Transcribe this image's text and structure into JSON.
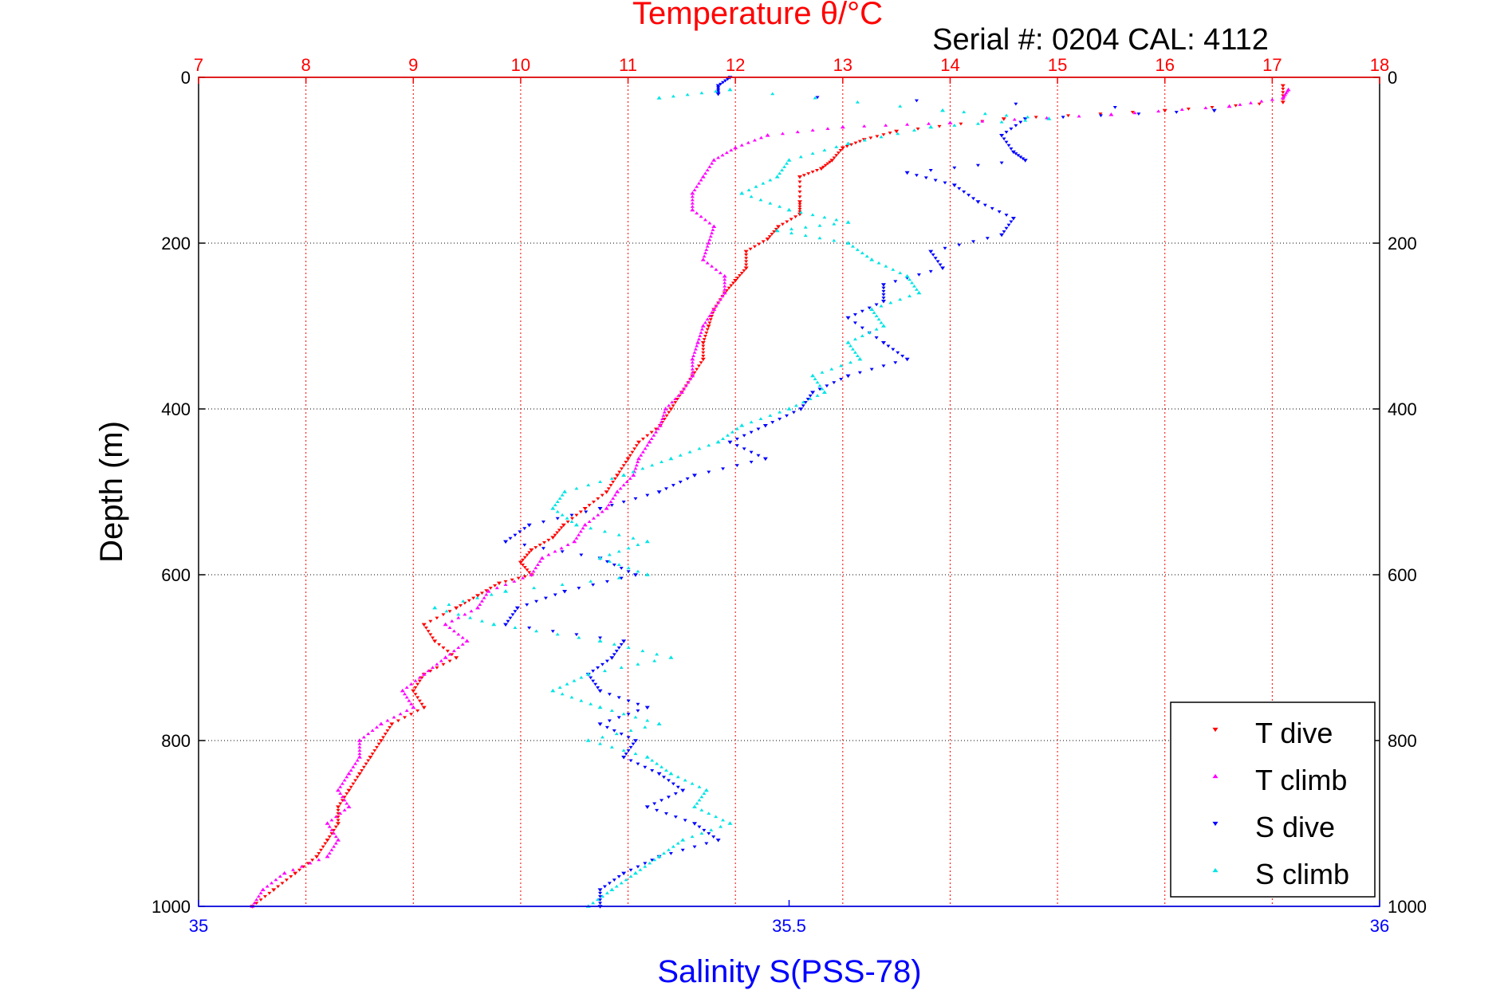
{
  "chart_data": {
    "type": "scatter",
    "title": "Temperature θ/°C",
    "subtitle": "Serial #: 0204  CAL: 4112",
    "xlabel_top": "Temperature θ/°C",
    "xlabel_bottom": "Salinity S(PSS-78)",
    "ylabel": "Depth (m)",
    "x_top_range": [
      7,
      18
    ],
    "x_top_ticks": [
      "7",
      "8",
      "9",
      "10",
      "11",
      "12",
      "13",
      "14",
      "15",
      "16",
      "17",
      "18"
    ],
    "x_bottom_range": [
      35,
      36
    ],
    "x_bottom_ticks": [
      "35",
      "35.5",
      "36"
    ],
    "y_range": [
      0,
      1000
    ],
    "y_reversed": true,
    "y_ticks": [
      "0",
      "200",
      "400",
      "600",
      "800",
      "1000"
    ],
    "grid": true,
    "legend_position": "bottom-right",
    "series": [
      {
        "name": "T dive",
        "axis": "top",
        "color": "#ff0000",
        "marker": "triangle-down",
        "points": [
          [
            17.1,
            10
          ],
          [
            17.1,
            30
          ],
          [
            16.0,
            40
          ],
          [
            14.5,
            50
          ],
          [
            13.5,
            65
          ],
          [
            13.2,
            75
          ],
          [
            13.0,
            85
          ],
          [
            12.9,
            100
          ],
          [
            12.8,
            110
          ],
          [
            12.6,
            120
          ],
          [
            12.6,
            150
          ],
          [
            12.6,
            165
          ],
          [
            12.4,
            180
          ],
          [
            12.3,
            195
          ],
          [
            12.1,
            210
          ],
          [
            12.1,
            230
          ],
          [
            12.0,
            245
          ],
          [
            11.9,
            260
          ],
          [
            11.8,
            280
          ],
          [
            11.75,
            300
          ],
          [
            11.7,
            320
          ],
          [
            11.7,
            340
          ],
          [
            11.6,
            360
          ],
          [
            11.5,
            380
          ],
          [
            11.4,
            400
          ],
          [
            11.3,
            420
          ],
          [
            11.1,
            440
          ],
          [
            11.0,
            460
          ],
          [
            10.9,
            480
          ],
          [
            10.8,
            500
          ],
          [
            10.6,
            520
          ],
          [
            10.4,
            540
          ],
          [
            10.3,
            555
          ],
          [
            10.1,
            570
          ],
          [
            10.0,
            585
          ],
          [
            10.1,
            600
          ],
          [
            9.8,
            610
          ],
          [
            9.6,
            625
          ],
          [
            9.4,
            640
          ],
          [
            9.1,
            660
          ],
          [
            9.2,
            680
          ],
          [
            9.4,
            700
          ],
          [
            9.1,
            720
          ],
          [
            9.0,
            740
          ],
          [
            9.1,
            760
          ],
          [
            8.8,
            780
          ],
          [
            8.7,
            800
          ],
          [
            8.6,
            820
          ],
          [
            8.5,
            840
          ],
          [
            8.4,
            860
          ],
          [
            8.3,
            880
          ],
          [
            8.3,
            900
          ],
          [
            8.2,
            920
          ],
          [
            8.1,
            940
          ],
          [
            7.9,
            960
          ],
          [
            7.7,
            980
          ],
          [
            7.5,
            1000
          ]
        ]
      },
      {
        "name": "T climb",
        "axis": "top",
        "color": "#ff00ff",
        "marker": "triangle-up",
        "points": [
          [
            17.15,
            15
          ],
          [
            17.1,
            25
          ],
          [
            16.6,
            35
          ],
          [
            15.5,
            45
          ],
          [
            14.0,
            55
          ],
          [
            13.0,
            60
          ],
          [
            12.3,
            70
          ],
          [
            12.0,
            85
          ],
          [
            11.8,
            100
          ],
          [
            11.7,
            120
          ],
          [
            11.6,
            140
          ],
          [
            11.6,
            160
          ],
          [
            11.8,
            180
          ],
          [
            11.75,
            200
          ],
          [
            11.7,
            220
          ],
          [
            11.9,
            240
          ],
          [
            11.9,
            260
          ],
          [
            11.8,
            280
          ],
          [
            11.7,
            300
          ],
          [
            11.65,
            320
          ],
          [
            11.6,
            340
          ],
          [
            11.6,
            360
          ],
          [
            11.5,
            380
          ],
          [
            11.35,
            400
          ],
          [
            11.3,
            420
          ],
          [
            11.2,
            440
          ],
          [
            11.1,
            460
          ],
          [
            11.05,
            480
          ],
          [
            10.9,
            500
          ],
          [
            10.8,
            520
          ],
          [
            10.6,
            540
          ],
          [
            10.5,
            560
          ],
          [
            10.2,
            580
          ],
          [
            10.1,
            600
          ],
          [
            9.7,
            620
          ],
          [
            9.6,
            640
          ],
          [
            9.3,
            660
          ],
          [
            9.5,
            680
          ],
          [
            9.3,
            700
          ],
          [
            9.1,
            720
          ],
          [
            8.9,
            740
          ],
          [
            9.0,
            760
          ],
          [
            8.7,
            780
          ],
          [
            8.5,
            800
          ],
          [
            8.5,
            820
          ],
          [
            8.4,
            840
          ],
          [
            8.3,
            860
          ],
          [
            8.4,
            880
          ],
          [
            8.2,
            900
          ],
          [
            8.3,
            920
          ],
          [
            8.2,
            940
          ],
          [
            7.8,
            960
          ],
          [
            7.6,
            980
          ],
          [
            7.5,
            1000
          ]
        ]
      },
      {
        "name": "S dive",
        "axis": "bottom",
        "color": "#0000ff",
        "marker": "triangle-down",
        "points": [
          [
            35.45,
            0
          ],
          [
            35.44,
            10
          ],
          [
            35.44,
            20
          ],
          [
            35.86,
            40
          ],
          [
            35.7,
            50
          ],
          [
            35.68,
            70
          ],
          [
            35.69,
            90
          ],
          [
            35.7,
            100
          ],
          [
            35.6,
            115
          ],
          [
            35.64,
            130
          ],
          [
            35.66,
            150
          ],
          [
            35.69,
            170
          ],
          [
            35.68,
            190
          ],
          [
            35.62,
            210
          ],
          [
            35.63,
            230
          ],
          [
            35.58,
            250
          ],
          [
            35.58,
            270
          ],
          [
            35.55,
            290
          ],
          [
            35.58,
            320
          ],
          [
            35.6,
            340
          ],
          [
            35.55,
            360
          ],
          [
            35.52,
            380
          ],
          [
            35.51,
            400
          ],
          [
            35.48,
            420
          ],
          [
            35.45,
            440
          ],
          [
            35.48,
            460
          ],
          [
            35.42,
            480
          ],
          [
            35.39,
            500
          ],
          [
            35.34,
            520
          ],
          [
            35.28,
            540
          ],
          [
            35.26,
            560
          ],
          [
            35.34,
            580
          ],
          [
            35.37,
            600
          ],
          [
            35.31,
            620
          ],
          [
            35.27,
            640
          ],
          [
            35.26,
            660
          ],
          [
            35.36,
            680
          ],
          [
            35.35,
            700
          ],
          [
            35.33,
            720
          ],
          [
            35.34,
            740
          ],
          [
            35.38,
            760
          ],
          [
            35.34,
            780
          ],
          [
            35.37,
            800
          ],
          [
            35.36,
            820
          ],
          [
            35.39,
            840
          ],
          [
            35.41,
            860
          ],
          [
            35.38,
            880
          ],
          [
            35.42,
            900
          ],
          [
            35.44,
            920
          ],
          [
            35.39,
            940
          ],
          [
            35.36,
            960
          ],
          [
            35.34,
            980
          ],
          [
            35.34,
            1000
          ]
        ]
      },
      {
        "name": "S climb",
        "axis": "bottom",
        "color": "#00e5e5",
        "marker": "triangle-up",
        "points": [
          [
            35.39,
            25
          ],
          [
            35.45,
            15
          ],
          [
            35.63,
            40
          ],
          [
            35.72,
            50
          ],
          [
            35.62,
            60
          ],
          [
            35.55,
            80
          ],
          [
            35.5,
            100
          ],
          [
            35.49,
            120
          ],
          [
            35.46,
            140
          ],
          [
            35.5,
            160
          ],
          [
            35.55,
            175
          ],
          [
            35.49,
            185
          ],
          [
            35.55,
            200
          ],
          [
            35.57,
            220
          ],
          [
            35.6,
            240
          ],
          [
            35.61,
            260
          ],
          [
            35.57,
            280
          ],
          [
            35.58,
            300
          ],
          [
            35.55,
            320
          ],
          [
            35.56,
            340
          ],
          [
            35.52,
            360
          ],
          [
            35.53,
            380
          ],
          [
            35.5,
            400
          ],
          [
            35.46,
            420
          ],
          [
            35.44,
            440
          ],
          [
            35.4,
            460
          ],
          [
            35.36,
            480
          ],
          [
            35.31,
            500
          ],
          [
            35.3,
            520
          ],
          [
            35.32,
            540
          ],
          [
            35.38,
            560
          ],
          [
            35.34,
            580
          ],
          [
            35.38,
            600
          ],
          [
            35.26,
            620
          ],
          [
            35.2,
            640
          ],
          [
            35.25,
            660
          ],
          [
            35.34,
            680
          ],
          [
            35.4,
            700
          ],
          [
            35.33,
            720
          ],
          [
            35.3,
            740
          ],
          [
            35.34,
            760
          ],
          [
            35.39,
            780
          ],
          [
            35.33,
            800
          ],
          [
            35.38,
            820
          ],
          [
            35.4,
            840
          ],
          [
            35.43,
            860
          ],
          [
            35.42,
            880
          ],
          [
            35.45,
            900
          ],
          [
            35.41,
            920
          ],
          [
            35.39,
            940
          ],
          [
            35.37,
            960
          ],
          [
            35.35,
            980
          ],
          [
            35.33,
            1000
          ]
        ]
      }
    ]
  }
}
